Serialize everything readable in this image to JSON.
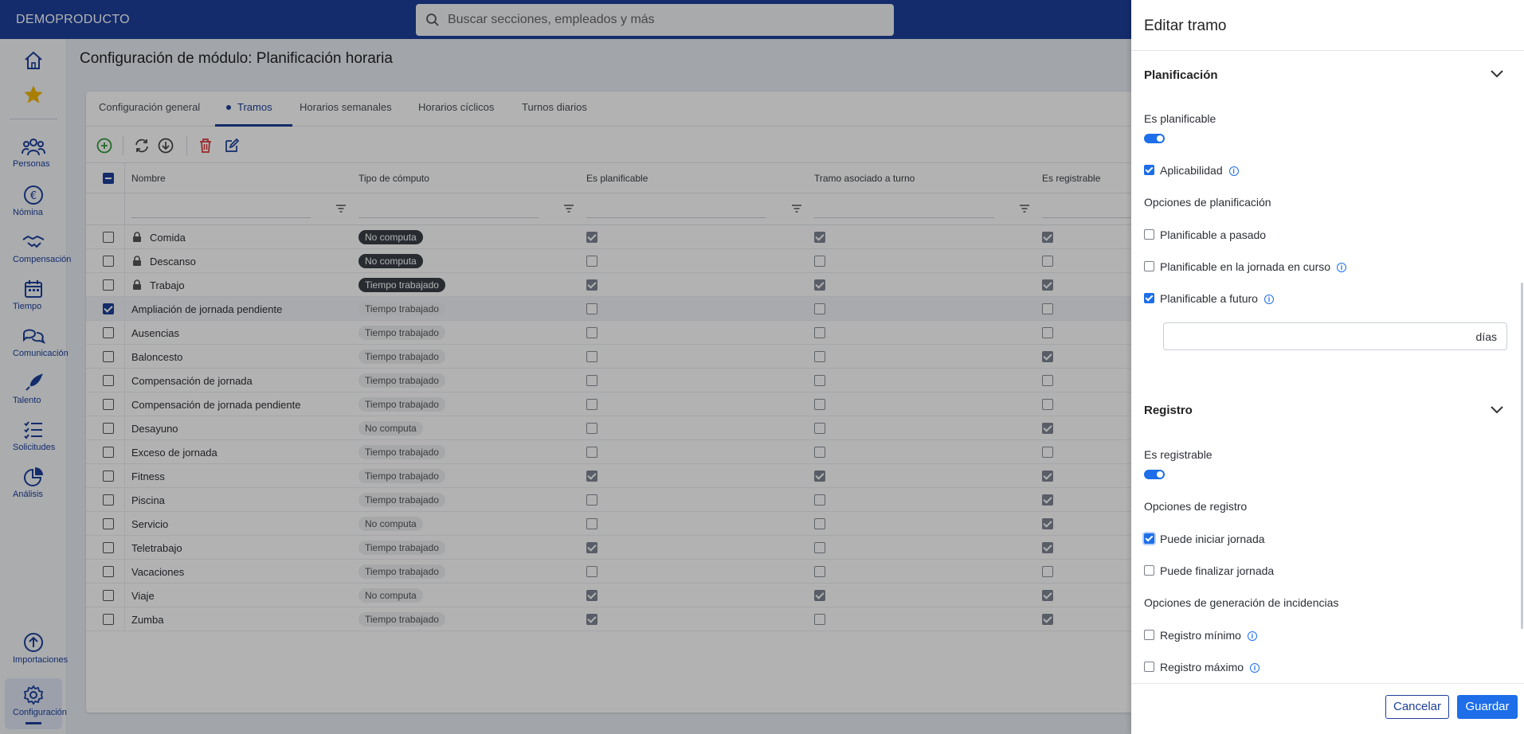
{
  "app": {
    "brand": "DEMOPRODUCTO"
  },
  "search": {
    "placeholder": "Buscar secciones, empleados y más"
  },
  "sidebar": {
    "items": [
      {
        "label": "",
        "icon": "home-icon"
      },
      {
        "label": "",
        "icon": "star-icon"
      },
      {
        "label": "Personas",
        "icon": "people-icon"
      },
      {
        "label": "Nómina",
        "icon": "euro-icon"
      },
      {
        "label": "Compensación",
        "icon": "handshake-icon"
      },
      {
        "label": "Tiempo",
        "icon": "calendar-icon"
      },
      {
        "label": "Comunicación",
        "icon": "chat-icon"
      },
      {
        "label": "Talento",
        "icon": "rocket-icon"
      },
      {
        "label": "Solicitudes",
        "icon": "checklist-icon"
      },
      {
        "label": "Análisis",
        "icon": "pie-icon"
      },
      {
        "label": "Importaciones",
        "icon": "upload-icon"
      },
      {
        "label": "Configuración",
        "icon": "gear-icon"
      }
    ]
  },
  "page": {
    "title": "Configuración de módulo: Planificación horaria"
  },
  "tabs": [
    {
      "label": "Configuración general"
    },
    {
      "label": "Tramos"
    },
    {
      "label": "Horarios semanales"
    },
    {
      "label": "Horarios cíclicos"
    },
    {
      "label": "Turnos diarios"
    }
  ],
  "table": {
    "columns": [
      "Nombre",
      "Tipo de cómputo",
      "Es planificable",
      "Tramo asociado a turno",
      "Es registrable"
    ],
    "rows": [
      {
        "name": "Comida",
        "locked": true,
        "tipo": "No computa",
        "dark": true,
        "plan": true,
        "turno": true,
        "reg": true,
        "sel": false
      },
      {
        "name": "Descanso",
        "locked": true,
        "tipo": "No computa",
        "dark": true,
        "plan": false,
        "turno": false,
        "reg": false,
        "sel": false
      },
      {
        "name": "Trabajo",
        "locked": true,
        "tipo": "Tiempo trabajado",
        "dark": true,
        "plan": true,
        "turno": true,
        "reg": true,
        "sel": false
      },
      {
        "name": "Ampliación de jornada pendiente",
        "locked": false,
        "tipo": "Tiempo trabajado",
        "dark": false,
        "plan": false,
        "turno": false,
        "reg": false,
        "sel": true
      },
      {
        "name": "Ausencias",
        "locked": false,
        "tipo": "Tiempo trabajado",
        "dark": false,
        "plan": false,
        "turno": false,
        "reg": false,
        "sel": false
      },
      {
        "name": "Baloncesto",
        "locked": false,
        "tipo": "Tiempo trabajado",
        "dark": false,
        "plan": false,
        "turno": false,
        "reg": true,
        "sel": false
      },
      {
        "name": "Compensación de jornada",
        "locked": false,
        "tipo": "Tiempo trabajado",
        "dark": false,
        "plan": false,
        "turno": false,
        "reg": false,
        "sel": false
      },
      {
        "name": "Compensación de jornada pendiente",
        "locked": false,
        "tipo": "Tiempo trabajado",
        "dark": false,
        "plan": false,
        "turno": false,
        "reg": false,
        "sel": false
      },
      {
        "name": "Desayuno",
        "locked": false,
        "tipo": "No computa",
        "dark": false,
        "plan": false,
        "turno": false,
        "reg": true,
        "sel": false
      },
      {
        "name": "Exceso de jornada",
        "locked": false,
        "tipo": "Tiempo trabajado",
        "dark": false,
        "plan": false,
        "turno": false,
        "reg": false,
        "sel": false
      },
      {
        "name": "Fitness",
        "locked": false,
        "tipo": "Tiempo trabajado",
        "dark": false,
        "plan": true,
        "turno": true,
        "reg": true,
        "sel": false
      },
      {
        "name": "Piscina",
        "locked": false,
        "tipo": "Tiempo trabajado",
        "dark": false,
        "plan": false,
        "turno": false,
        "reg": true,
        "sel": false
      },
      {
        "name": "Servicio",
        "locked": false,
        "tipo": "No computa",
        "dark": false,
        "plan": false,
        "turno": false,
        "reg": true,
        "sel": false
      },
      {
        "name": "Teletrabajo",
        "locked": false,
        "tipo": "Tiempo trabajado",
        "dark": false,
        "plan": true,
        "turno": false,
        "reg": true,
        "sel": false
      },
      {
        "name": "Vacaciones",
        "locked": false,
        "tipo": "Tiempo trabajado",
        "dark": false,
        "plan": false,
        "turno": false,
        "reg": false,
        "sel": false
      },
      {
        "name": "Viaje",
        "locked": false,
        "tipo": "No computa",
        "dark": false,
        "plan": true,
        "turno": true,
        "reg": true,
        "sel": false
      },
      {
        "name": "Zumba",
        "locked": false,
        "tipo": "Tiempo trabajado",
        "dark": false,
        "plan": true,
        "turno": false,
        "reg": true,
        "sel": false
      }
    ]
  },
  "panel": {
    "title": "Editar tramo",
    "planificacion": {
      "title": "Planificación",
      "es_planificable_label": "Es planificable",
      "es_planificable": true,
      "aplicabilidad_label": "Aplicabilidad",
      "aplicabilidad": true,
      "opciones_label": "Opciones de planificación",
      "pasado_label": "Planificable a pasado",
      "pasado": false,
      "en_curso_label": "Planificable en la jornada en curso",
      "en_curso": false,
      "futuro_label": "Planificable a futuro",
      "futuro": true,
      "dias_value": "",
      "dias_suffix": "días"
    },
    "registro": {
      "title": "Registro",
      "es_registrable_label": "Es registrable",
      "es_registrable": true,
      "opciones_label": "Opciones de registro",
      "iniciar_label": "Puede iniciar jornada",
      "iniciar": true,
      "finalizar_label": "Puede finalizar jornada",
      "finalizar": false,
      "incidencias_label": "Opciones de generación de incidencias",
      "minimo_label": "Registro mínimo",
      "minimo": false,
      "maximo_label": "Registro máximo",
      "maximo": false
    },
    "cancel_label": "Cancelar",
    "save_label": "Guardar"
  },
  "colors": {
    "brand": "#1d3f9a",
    "accent": "#1d6ee8"
  }
}
